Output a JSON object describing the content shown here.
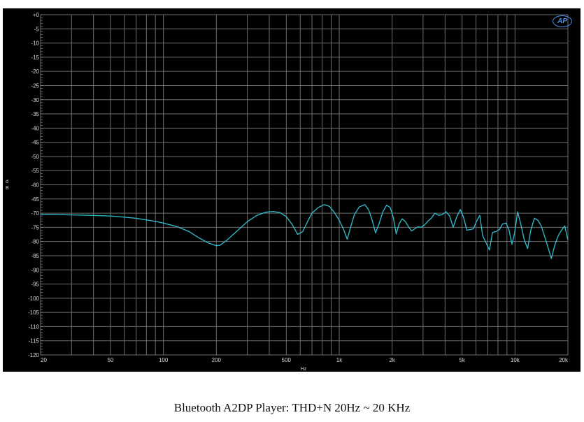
{
  "caption": "Bluetooth A2DP Player: THD+N 20Hz ~ 20 KHz",
  "logo_text": "AP",
  "chart_data": {
    "type": "line",
    "title": "",
    "xlabel": "Hz",
    "ylabel": "dB",
    "x_scale": "log",
    "xlim": [
      20,
      20000
    ],
    "ylim": [
      -120,
      0
    ],
    "grid": true,
    "background": "#000000",
    "grid_color": "#6e6e6e",
    "line_color": "#2fb4c4",
    "x_ticks": [
      {
        "value": 20,
        "label": "20"
      },
      {
        "value": 50,
        "label": "50"
      },
      {
        "value": 100,
        "label": "100"
      },
      {
        "value": 200,
        "label": "200"
      },
      {
        "value": 500,
        "label": "500"
      },
      {
        "value": 1000,
        "label": "1k"
      },
      {
        "value": 2000,
        "label": "2k"
      },
      {
        "value": 5000,
        "label": "5k"
      },
      {
        "value": 10000,
        "label": "10k"
      },
      {
        "value": 20000,
        "label": "20k"
      }
    ],
    "y_ticks": [
      {
        "value": 0,
        "label": "+0"
      },
      {
        "value": -5,
        "label": "-5"
      },
      {
        "value": -10,
        "label": "-10"
      },
      {
        "value": -15,
        "label": "-15"
      },
      {
        "value": -20,
        "label": "-20"
      },
      {
        "value": -25,
        "label": "-25"
      },
      {
        "value": -30,
        "label": "-30"
      },
      {
        "value": -35,
        "label": "-35"
      },
      {
        "value": -40,
        "label": "-40"
      },
      {
        "value": -45,
        "label": "-45"
      },
      {
        "value": -50,
        "label": "-50"
      },
      {
        "value": -55,
        "label": "-55"
      },
      {
        "value": -60,
        "label": "-60"
      },
      {
        "value": -65,
        "label": "-65"
      },
      {
        "value": -70,
        "label": "-70"
      },
      {
        "value": -75,
        "label": "-75"
      },
      {
        "value": -80,
        "label": "-80"
      },
      {
        "value": -85,
        "label": "-85"
      },
      {
        "value": -90,
        "label": "-90"
      },
      {
        "value": -95,
        "label": "-95"
      },
      {
        "value": -100,
        "label": "-100"
      },
      {
        "value": -105,
        "label": "-105"
      },
      {
        "value": -110,
        "label": "-110"
      },
      {
        "value": -115,
        "label": "-115"
      },
      {
        "value": -120,
        "label": "-120"
      }
    ],
    "x_grid": [
      20,
      30,
      40,
      50,
      60,
      70,
      80,
      90,
      100,
      200,
      300,
      400,
      500,
      600,
      700,
      800,
      900,
      1000,
      2000,
      3000,
      4000,
      5000,
      6000,
      7000,
      8000,
      9000,
      10000,
      20000
    ],
    "series": [
      {
        "points": [
          [
            20,
            -70.5
          ],
          [
            25,
            -70.5
          ],
          [
            30,
            -70.6
          ],
          [
            40,
            -70.8
          ],
          [
            50,
            -71
          ],
          [
            60,
            -71.4
          ],
          [
            70,
            -71.8
          ],
          [
            80,
            -72.4
          ],
          [
            90,
            -72.9
          ],
          [
            100,
            -73.5
          ],
          [
            120,
            -74.8
          ],
          [
            140,
            -76.5
          ],
          [
            160,
            -78.8
          ],
          [
            180,
            -80.5
          ],
          [
            200,
            -81.5
          ],
          [
            210,
            -81.3
          ],
          [
            230,
            -79.5
          ],
          [
            260,
            -76.5
          ],
          [
            300,
            -73
          ],
          [
            340,
            -70.8
          ],
          [
            380,
            -69.7
          ],
          [
            420,
            -69.4
          ],
          [
            460,
            -69.8
          ],
          [
            500,
            -71.2
          ],
          [
            540,
            -74
          ],
          [
            580,
            -77.5
          ],
          [
            620,
            -76.5
          ],
          [
            660,
            -73
          ],
          [
            700,
            -70
          ],
          [
            760,
            -68
          ],
          [
            820,
            -67
          ],
          [
            880,
            -67.6
          ],
          [
            940,
            -69.8
          ],
          [
            1000,
            -72.5
          ],
          [
            1060,
            -75.8
          ],
          [
            1110,
            -79.2
          ],
          [
            1160,
            -75
          ],
          [
            1220,
            -70.5
          ],
          [
            1300,
            -67.8
          ],
          [
            1400,
            -67
          ],
          [
            1470,
            -68.8
          ],
          [
            1540,
            -72.5
          ],
          [
            1610,
            -77
          ],
          [
            1690,
            -73.5
          ],
          [
            1770,
            -69.5
          ],
          [
            1860,
            -67.2
          ],
          [
            1950,
            -68
          ],
          [
            2030,
            -71.5
          ],
          [
            2110,
            -77.3
          ],
          [
            2190,
            -73.8
          ],
          [
            2280,
            -72
          ],
          [
            2380,
            -73
          ],
          [
            2480,
            -74.8
          ],
          [
            2580,
            -76.3
          ],
          [
            2690,
            -75.5
          ],
          [
            2800,
            -74.8
          ],
          [
            2920,
            -75
          ],
          [
            3050,
            -74.2
          ],
          [
            3200,
            -72.8
          ],
          [
            3350,
            -71.7
          ],
          [
            3500,
            -70
          ],
          [
            3680,
            -70.8
          ],
          [
            3860,
            -70.5
          ],
          [
            4050,
            -69.5
          ],
          [
            4250,
            -71
          ],
          [
            4450,
            -75
          ],
          [
            4650,
            -71.5
          ],
          [
            4880,
            -68.7
          ],
          [
            5100,
            -71.5
          ],
          [
            5320,
            -76
          ],
          [
            5560,
            -75.8
          ],
          [
            5800,
            -75.5
          ],
          [
            6050,
            -72.8
          ],
          [
            6300,
            -70.8
          ],
          [
            6550,
            -78
          ],
          [
            6850,
            -80.5
          ],
          [
            7150,
            -83
          ],
          [
            7450,
            -76.8
          ],
          [
            7800,
            -76.5
          ],
          [
            8150,
            -75.8
          ],
          [
            8500,
            -73.8
          ],
          [
            8900,
            -73.5
          ],
          [
            9250,
            -76
          ],
          [
            9600,
            -81
          ],
          [
            9950,
            -77
          ],
          [
            10350,
            -69.5
          ],
          [
            10800,
            -74
          ],
          [
            11300,
            -79.5
          ],
          [
            11800,
            -82.5
          ],
          [
            12300,
            -76
          ],
          [
            12900,
            -71.8
          ],
          [
            13500,
            -72.5
          ],
          [
            14100,
            -74.5
          ],
          [
            14700,
            -78
          ],
          [
            15400,
            -82
          ],
          [
            16100,
            -86
          ],
          [
            16800,
            -81.5
          ],
          [
            17600,
            -78
          ],
          [
            18400,
            -76
          ],
          [
            19200,
            -74.5
          ],
          [
            20000,
            -79.5
          ]
        ]
      }
    ]
  }
}
